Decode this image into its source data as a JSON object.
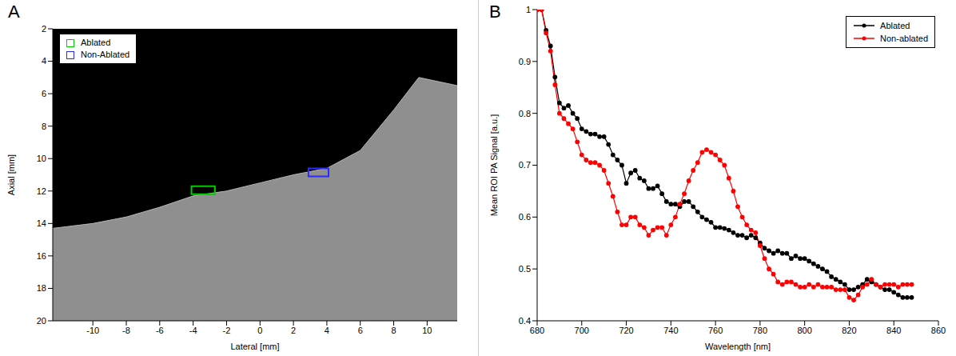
{
  "chart_data": [
    {
      "panel": "A",
      "type": "image",
      "xlabel": "Lateral [mm]",
      "ylabel": "Axial [mm]",
      "xlim": [
        -12.4,
        11.8
      ],
      "ylim": [
        2,
        20
      ],
      "xticks": [
        -10,
        -8,
        -6,
        -4,
        -2,
        0,
        2,
        4,
        6,
        8,
        10
      ],
      "yticks": [
        2,
        4,
        6,
        8,
        10,
        12,
        14,
        16,
        18,
        20
      ],
      "legend": "upper left",
      "rois": [
        {
          "name": "Ablated",
          "color": "#00cc00",
          "x": [
            -4.1,
            -2.7
          ],
          "y": [
            11.7,
            12.2
          ]
        },
        {
          "name": "Non-Ablated",
          "color": "#2a2aff",
          "x": [
            2.9,
            4.1
          ],
          "y": [
            10.6,
            11.1
          ]
        }
      ],
      "tissue_surface": {
        "x": [
          -12.4,
          -10,
          -8,
          -6,
          -4,
          -2,
          0,
          2,
          4,
          6,
          8,
          9.5,
          11.8
        ],
        "y": [
          14.3,
          14,
          13.6,
          13,
          12.3,
          12,
          11.5,
          11,
          10.6,
          9.5,
          7,
          5,
          5.5
        ]
      }
    },
    {
      "panel": "B",
      "type": "line",
      "xlabel": "Wavelength [nm]",
      "ylabel": "Mean ROI PA Signal [a.u.]",
      "xlim": [
        680,
        860
      ],
      "ylim": [
        0.4,
        1
      ],
      "xticks": [
        680,
        700,
        720,
        740,
        760,
        780,
        800,
        820,
        840,
        860
      ],
      "yticks": [
        0.4,
        0.5,
        0.6,
        0.7,
        0.8,
        0.9,
        1
      ],
      "legend": "upper right",
      "x": [
        680,
        682,
        684,
        686,
        688,
        690,
        692,
        694,
        696,
        698,
        700,
        702,
        704,
        706,
        708,
        710,
        712,
        714,
        716,
        718,
        720,
        722,
        724,
        726,
        728,
        730,
        732,
        734,
        736,
        738,
        740,
        742,
        744,
        746,
        748,
        750,
        752,
        754,
        756,
        758,
        760,
        762,
        764,
        766,
        768,
        770,
        772,
        774,
        776,
        778,
        780,
        782,
        784,
        786,
        788,
        790,
        792,
        794,
        796,
        798,
        800,
        802,
        804,
        806,
        808,
        810,
        812,
        814,
        816,
        818,
        820,
        822,
        824,
        826,
        828,
        830,
        832,
        834,
        836,
        838,
        840,
        842,
        844,
        846,
        848
      ],
      "series": [
        {
          "name": "Ablated",
          "color": "#000000",
          "marker": "o",
          "values": [
            1.0,
            1.0,
            0.96,
            0.93,
            0.87,
            0.82,
            0.81,
            0.815,
            0.8,
            0.79,
            0.77,
            0.765,
            0.76,
            0.76,
            0.755,
            0.755,
            0.74,
            0.72,
            0.71,
            0.7,
            0.665,
            0.685,
            0.69,
            0.675,
            0.67,
            0.655,
            0.655,
            0.66,
            0.645,
            0.63,
            0.625,
            0.625,
            0.62,
            0.63,
            0.63,
            0.62,
            0.61,
            0.6,
            0.595,
            0.59,
            0.58,
            0.58,
            0.578,
            0.575,
            0.57,
            0.565,
            0.565,
            0.56,
            0.565,
            0.56,
            0.55,
            0.54,
            0.535,
            0.53,
            0.535,
            0.53,
            0.53,
            0.52,
            0.525,
            0.52,
            0.52,
            0.515,
            0.51,
            0.505,
            0.5,
            0.495,
            0.485,
            0.48,
            0.475,
            0.47,
            0.46,
            0.46,
            0.465,
            0.47,
            0.48,
            0.475,
            0.47,
            0.465,
            0.46,
            0.46,
            0.455,
            0.45,
            0.445,
            0.445,
            0.445
          ]
        },
        {
          "name": "Non-ablated",
          "color": "#ff0000",
          "marker": "o",
          "values": [
            1.0,
            1.0,
            0.955,
            0.92,
            0.855,
            0.8,
            0.79,
            0.78,
            0.77,
            0.745,
            0.72,
            0.71,
            0.705,
            0.705,
            0.7,
            0.69,
            0.665,
            0.64,
            0.61,
            0.585,
            0.585,
            0.6,
            0.6,
            0.585,
            0.58,
            0.565,
            0.575,
            0.58,
            0.58,
            0.565,
            0.585,
            0.6,
            0.625,
            0.645,
            0.67,
            0.69,
            0.705,
            0.725,
            0.73,
            0.725,
            0.72,
            0.71,
            0.7,
            0.675,
            0.65,
            0.62,
            0.6,
            0.585,
            0.575,
            0.57,
            0.545,
            0.52,
            0.5,
            0.49,
            0.475,
            0.47,
            0.475,
            0.475,
            0.47,
            0.465,
            0.465,
            0.47,
            0.465,
            0.47,
            0.465,
            0.465,
            0.465,
            0.46,
            0.46,
            0.46,
            0.445,
            0.44,
            0.45,
            0.465,
            0.47,
            0.48,
            0.47,
            0.465,
            0.47,
            0.47,
            0.47,
            0.465,
            0.47,
            0.47,
            0.47
          ]
        }
      ]
    }
  ]
}
